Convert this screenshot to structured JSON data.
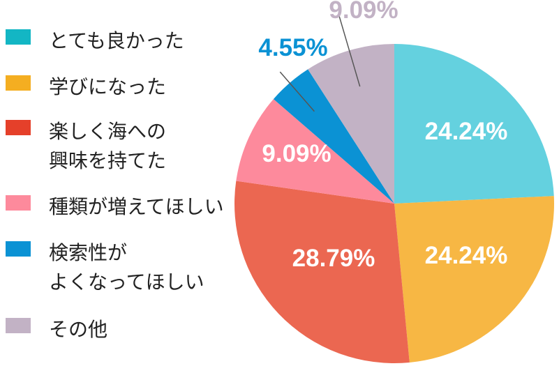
{
  "chart_data": {
    "type": "pie",
    "categories": [
      "とても良かった",
      "学びになった",
      "楽しく海への\n興味を持てた",
      "種類が増えてほしい",
      "検索性が\nよくなってほしい",
      "その他"
    ],
    "values": [
      24.24,
      24.24,
      28.79,
      9.09,
      4.55,
      9.09
    ],
    "labels": [
      "24.24%",
      "24.24%",
      "28.79%",
      "9.09%",
      "4.55%",
      "9.09%"
    ],
    "colors": [
      "#64D1DF",
      "#F7B744",
      "#EB6751",
      "#FD8A9C",
      "#0B92D4",
      "#C2B2C5"
    ],
    "legend_colors": [
      "#13B6C4",
      "#F4AE21",
      "#E5402A",
      "#FD8A9C",
      "#0B92D4",
      "#C2B2C5"
    ],
    "label_colors": [
      "#FFFFFF",
      "#FFFFFF",
      "#FFFFFF",
      "#FFFFFF",
      "#0B92D4",
      "#C2B2C5"
    ],
    "legend_placement": "left"
  }
}
